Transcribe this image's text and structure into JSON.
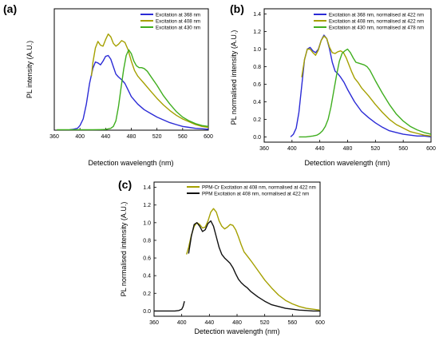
{
  "chart_data": [
    {
      "panel_label": "(a)",
      "type": "line",
      "xlabel": "Detection wavelength (nm)",
      "ylabel": "PL intensity (A.U.)",
      "xlim": [
        360,
        600
      ],
      "xticks": [
        360,
        400,
        440,
        480,
        520,
        560,
        600
      ],
      "yticks": [],
      "ylim": [
        0,
        1.3
      ],
      "grid": false,
      "legend_position": "top-right",
      "series": [
        {
          "name": "Excitation at 368 nm",
          "color": "#2b2bd6",
          "x": [
            384,
            390,
            396,
            400,
            405,
            410,
            415,
            420,
            424,
            428,
            432,
            436,
            440,
            444,
            448,
            452,
            456,
            460,
            465,
            470,
            475,
            480,
            490,
            500,
            510,
            520,
            530,
            540,
            550,
            560,
            570,
            580,
            590,
            600
          ],
          "y": [
            0.005,
            0.01,
            0.02,
            0.05,
            0.12,
            0.28,
            0.5,
            0.66,
            0.73,
            0.72,
            0.7,
            0.74,
            0.79,
            0.8,
            0.76,
            0.68,
            0.6,
            0.57,
            0.54,
            0.5,
            0.43,
            0.36,
            0.28,
            0.22,
            0.18,
            0.14,
            0.11,
            0.08,
            0.06,
            0.04,
            0.03,
            0.02,
            0.015,
            0.01
          ]
        },
        {
          "name": "Excitation at 408 nm",
          "color": "#a5a000",
          "x": [
            418,
            420,
            424,
            428,
            432,
            436,
            440,
            444,
            448,
            452,
            456,
            460,
            465,
            470,
            475,
            480,
            485,
            490,
            495,
            500,
            510,
            520,
            530,
            540,
            550,
            560,
            570,
            580,
            590,
            600
          ],
          "y": [
            0.58,
            0.72,
            0.88,
            0.95,
            0.91,
            0.9,
            0.97,
            1.03,
            1.0,
            0.93,
            0.9,
            0.92,
            0.96,
            0.94,
            0.86,
            0.74,
            0.64,
            0.58,
            0.54,
            0.5,
            0.42,
            0.34,
            0.27,
            0.21,
            0.16,
            0.12,
            0.09,
            0.06,
            0.04,
            0.03
          ]
        },
        {
          "name": "Excitation at 430 nm",
          "color": "#3fae1f",
          "x": [
            364,
            380,
            400,
            420,
            432,
            440,
            448,
            452,
            456,
            460,
            464,
            468,
            472,
            476,
            480,
            484,
            488,
            492,
            496,
            500,
            505,
            510,
            520,
            530,
            540,
            550,
            560,
            570,
            580,
            590,
            600
          ],
          "y": [
            0.005,
            0.005,
            0.005,
            0.005,
            0.006,
            0.008,
            0.02,
            0.04,
            0.1,
            0.25,
            0.45,
            0.65,
            0.8,
            0.86,
            0.82,
            0.74,
            0.69,
            0.67,
            0.67,
            0.66,
            0.63,
            0.58,
            0.48,
            0.37,
            0.28,
            0.2,
            0.14,
            0.1,
            0.07,
            0.05,
            0.04
          ]
        }
      ]
    },
    {
      "panel_label": "(b)",
      "type": "line",
      "xlabel": "Detection wavelength (nm)",
      "ylabel": "PL normalised intensity (A.U.)",
      "xlim": [
        360,
        600
      ],
      "ylim": [
        -0.06,
        1.46
      ],
      "xticks": [
        360,
        400,
        440,
        480,
        520,
        560,
        600
      ],
      "yticks": [
        0.0,
        0.2,
        0.4,
        0.6,
        0.8,
        1.0,
        1.2,
        1.4
      ],
      "grid": false,
      "legend_position": "top-right",
      "series": [
        {
          "name": "Excitation at 368 nm, normalised at 422 nm",
          "color": "#2b2bd6",
          "x": [
            398,
            402,
            406,
            410,
            414,
            418,
            422,
            426,
            430,
            434,
            438,
            442,
            446,
            450,
            454,
            458,
            462,
            466,
            470,
            475,
            480,
            490,
            500,
            510,
            520,
            530,
            540,
            550,
            560,
            570,
            580,
            590,
            600
          ],
          "y": [
            0.0,
            0.03,
            0.1,
            0.28,
            0.58,
            0.88,
            1.0,
            1.02,
            0.98,
            0.96,
            1.0,
            1.1,
            1.16,
            1.12,
            1.0,
            0.85,
            0.75,
            0.72,
            0.68,
            0.62,
            0.54,
            0.4,
            0.29,
            0.22,
            0.16,
            0.11,
            0.07,
            0.05,
            0.03,
            0.02,
            0.01,
            0.01,
            0.0
          ]
        },
        {
          "name": "Excitation at 408 nm, normalised at 422 nm",
          "color": "#a5a000",
          "x": [
            414,
            418,
            422,
            426,
            430,
            434,
            438,
            442,
            446,
            450,
            454,
            458,
            462,
            466,
            470,
            474,
            478,
            482,
            486,
            490,
            495,
            500,
            510,
            520,
            530,
            540,
            550,
            560,
            570,
            580,
            590,
            600
          ],
          "y": [
            0.68,
            0.88,
            1.0,
            1.0,
            0.96,
            0.93,
            0.99,
            1.1,
            1.15,
            1.12,
            1.02,
            0.96,
            0.95,
            0.97,
            0.98,
            0.96,
            0.9,
            0.82,
            0.74,
            0.67,
            0.62,
            0.56,
            0.47,
            0.37,
            0.28,
            0.2,
            0.14,
            0.1,
            0.06,
            0.04,
            0.02,
            0.01
          ]
        },
        {
          "name": "Excitation at 430 nm, normalised at 478 nm",
          "color": "#3fae1f",
          "x": [
            410,
            420,
            430,
            436,
            440,
            444,
            448,
            452,
            456,
            460,
            464,
            468,
            472,
            476,
            480,
            484,
            488,
            492,
            496,
            500,
            504,
            508,
            512,
            520,
            530,
            540,
            550,
            560,
            570,
            580,
            590,
            600
          ],
          "y": [
            0.0,
            0.0,
            0.01,
            0.02,
            0.04,
            0.07,
            0.12,
            0.2,
            0.34,
            0.52,
            0.7,
            0.86,
            0.95,
            0.98,
            1.0,
            0.96,
            0.9,
            0.85,
            0.84,
            0.83,
            0.82,
            0.8,
            0.76,
            0.64,
            0.5,
            0.37,
            0.26,
            0.18,
            0.12,
            0.08,
            0.05,
            0.03
          ]
        }
      ]
    },
    {
      "panel_label": "(c)",
      "type": "line",
      "xlabel": "Detection wavelength (nm)",
      "ylabel": "PL normalised intensity (A.U.)",
      "xlim": [
        360,
        600
      ],
      "ylim": [
        -0.06,
        1.46
      ],
      "xticks": [
        360,
        400,
        440,
        480,
        520,
        560,
        600
      ],
      "yticks": [
        0.0,
        0.2,
        0.4,
        0.6,
        0.8,
        1.0,
        1.2,
        1.4
      ],
      "grid": false,
      "legend_position": "top-left",
      "series": [
        {
          "name": "PPM-Cr Excitation at 408 nm, normalised at 422 nm",
          "color": "#a5a000",
          "x": [
            407,
            410,
            414,
            418,
            422,
            426,
            430,
            434,
            438,
            442,
            446,
            450,
            454,
            458,
            462,
            466,
            470,
            474,
            478,
            482,
            486,
            490,
            495,
            500,
            510,
            520,
            530,
            540,
            550,
            560,
            570,
            580,
            590,
            600
          ],
          "y": [
            0.64,
            0.72,
            0.86,
            0.96,
            1.0,
            0.98,
            0.94,
            0.95,
            1.02,
            1.12,
            1.16,
            1.12,
            1.02,
            0.96,
            0.93,
            0.95,
            0.98,
            0.97,
            0.92,
            0.84,
            0.75,
            0.67,
            0.62,
            0.57,
            0.46,
            0.35,
            0.26,
            0.18,
            0.12,
            0.08,
            0.05,
            0.03,
            0.02,
            0.01
          ]
        },
        {
          "name": "PPM Excitation at 408 nm, normalised at 422 nm",
          "color": "#111111",
          "x": [
            360,
            370,
            380,
            390,
            396,
            400,
            402,
            404
          ],
          "y": [
            0.0,
            0.0,
            0.0,
            0.0,
            0.005,
            0.02,
            0.05,
            0.11
          ],
          "x2": [
            410,
            414,
            418,
            422,
            426,
            430,
            434,
            438,
            442,
            446,
            450,
            454,
            458,
            462,
            466,
            470,
            474,
            478,
            482,
            486,
            490,
            495,
            500,
            505,
            510,
            520,
            530,
            540,
            550,
            560,
            570,
            580,
            590,
            600
          ],
          "y2": [
            0.65,
            0.85,
            0.98,
            1.0,
            0.96,
            0.9,
            0.92,
            0.99,
            1.02,
            0.96,
            0.84,
            0.72,
            0.64,
            0.6,
            0.57,
            0.54,
            0.49,
            0.42,
            0.36,
            0.32,
            0.29,
            0.26,
            0.22,
            0.19,
            0.16,
            0.11,
            0.07,
            0.05,
            0.03,
            0.02,
            0.01,
            0.005,
            0.0,
            0.0
          ]
        }
      ]
    }
  ]
}
